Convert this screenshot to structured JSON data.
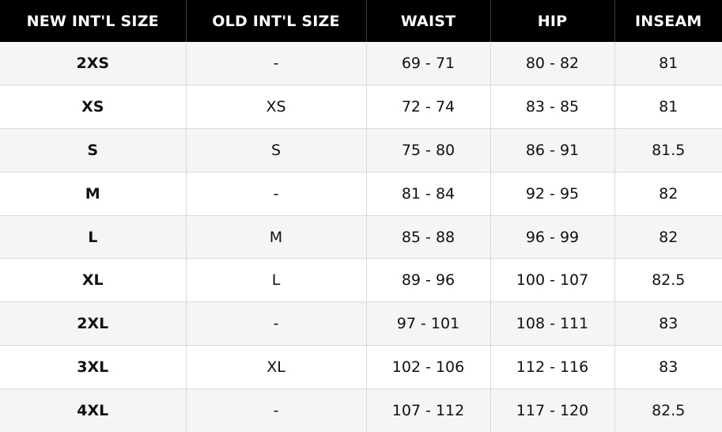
{
  "table": {
    "headers": [
      "NEW INT'L SIZE",
      "OLD INT'L SIZE",
      "WAIST",
      "HIP",
      "INSEAM"
    ],
    "rows": [
      [
        "2XS",
        "-",
        "69 - 71",
        "80 - 82",
        "81"
      ],
      [
        "XS",
        "XS",
        "72 - 74",
        "83 - 85",
        "81"
      ],
      [
        "S",
        "S",
        "75 - 80",
        "86 - 91",
        "81.5"
      ],
      [
        "M",
        "-",
        "81 - 84",
        "92 - 95",
        "82"
      ],
      [
        "L",
        "M",
        "85 - 88",
        "96 - 99",
        "82"
      ],
      [
        "XL",
        "L",
        "89 - 96",
        "100 - 107",
        "82.5"
      ],
      [
        "2XL",
        "-",
        "97 - 101",
        "108 - 111",
        "83"
      ],
      [
        "3XL",
        "XL",
        "102 - 106",
        "112 - 116",
        "83"
      ],
      [
        "4XL",
        "-",
        "107 - 112",
        "117 - 120",
        "82.5"
      ]
    ]
  },
  "colors": {
    "header_bg": "#000000",
    "header_text": "#ffffff",
    "row_alt_bg": "#f5f5f5",
    "row_bg": "#ffffff",
    "grid_line": "#d9d9d9"
  }
}
